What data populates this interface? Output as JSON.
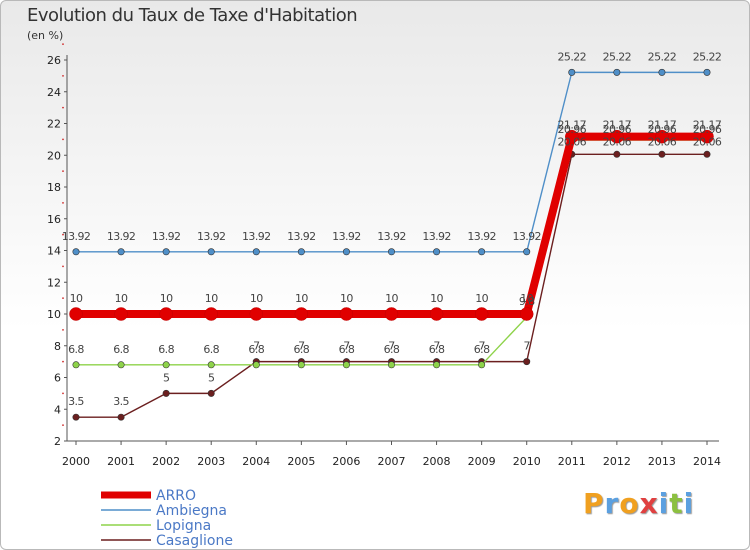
{
  "title": "Evolution du Taux de Taxe d'Habitation",
  "subtitle": "(en %)",
  "logo": {
    "text": "Proxiti",
    "colors": [
      "#f0a020",
      "#5ba0e0",
      "#f0a020",
      "#e04040",
      "#5ba0e0",
      "#8cc040",
      "#5ba0e0"
    ]
  },
  "chart_data": {
    "type": "line",
    "title": "Evolution du Taux de Taxe d'Habitation",
    "ylabel": "(en %)",
    "xlabel": "",
    "x": [
      "2000",
      "2001",
      "2002",
      "2003",
      "2004",
      "2005",
      "2006",
      "2007",
      "2008",
      "2009",
      "2010",
      "2011",
      "2012",
      "2013",
      "2014"
    ],
    "ylim": [
      2,
      26
    ],
    "yticks": [
      2,
      4,
      6,
      8,
      10,
      12,
      14,
      16,
      18,
      20,
      22,
      24,
      26
    ],
    "grid": false,
    "legend_position": "bottom-left",
    "series": [
      {
        "name": "ARRO",
        "color": "#e00000",
        "values": [
          10,
          10,
          10,
          10,
          10,
          10,
          10,
          10,
          10,
          10,
          10,
          21.17,
          21.17,
          21.17,
          21.17
        ],
        "labels": [
          "10",
          "10",
          "10",
          "10",
          "10",
          "10",
          "10",
          "10",
          "10",
          "10",
          "10",
          "21.17",
          "21.17",
          "21.17",
          "21.17"
        ]
      },
      {
        "name": "Ambiegna",
        "color": "#4f8fc8",
        "values": [
          13.92,
          13.92,
          13.92,
          13.92,
          13.92,
          13.92,
          13.92,
          13.92,
          13.92,
          13.92,
          13.92,
          25.22,
          25.22,
          25.22,
          25.22
        ],
        "labels": [
          "13.92",
          "13.92",
          "13.92",
          "13.92",
          "13.92",
          "13.92",
          "13.92",
          "13.92",
          "13.92",
          "13.92",
          "13.92",
          "25.22",
          "25.22",
          "25.22",
          "25.22"
        ]
      },
      {
        "name": "Lopigna",
        "color": "#8ed34a",
        "values": [
          6.8,
          6.8,
          6.8,
          6.8,
          6.8,
          6.8,
          6.8,
          6.8,
          6.8,
          6.8,
          9.8,
          20.96,
          20.96,
          20.96,
          20.96
        ],
        "labels": [
          "6.8",
          "6.8",
          "6.8",
          "6.8",
          "6.8",
          "6.8",
          "6.8",
          "6.8",
          "6.8",
          "6.8",
          "9.8",
          "20.96",
          "20.96",
          "20.96",
          "20.96"
        ]
      },
      {
        "name": "Casaglione",
        "color": "#6b1f1f",
        "values": [
          3.5,
          3.5,
          5,
          5,
          7,
          7,
          7,
          7,
          7,
          7,
          7,
          20.06,
          20.06,
          20.06,
          20.06
        ],
        "labels": [
          "3.5",
          "3.5",
          "5",
          "5",
          "7",
          "7",
          "7",
          "7",
          "7",
          "7",
          "7",
          "20.06",
          "20.06",
          "20.06",
          "20.06"
        ]
      }
    ]
  }
}
